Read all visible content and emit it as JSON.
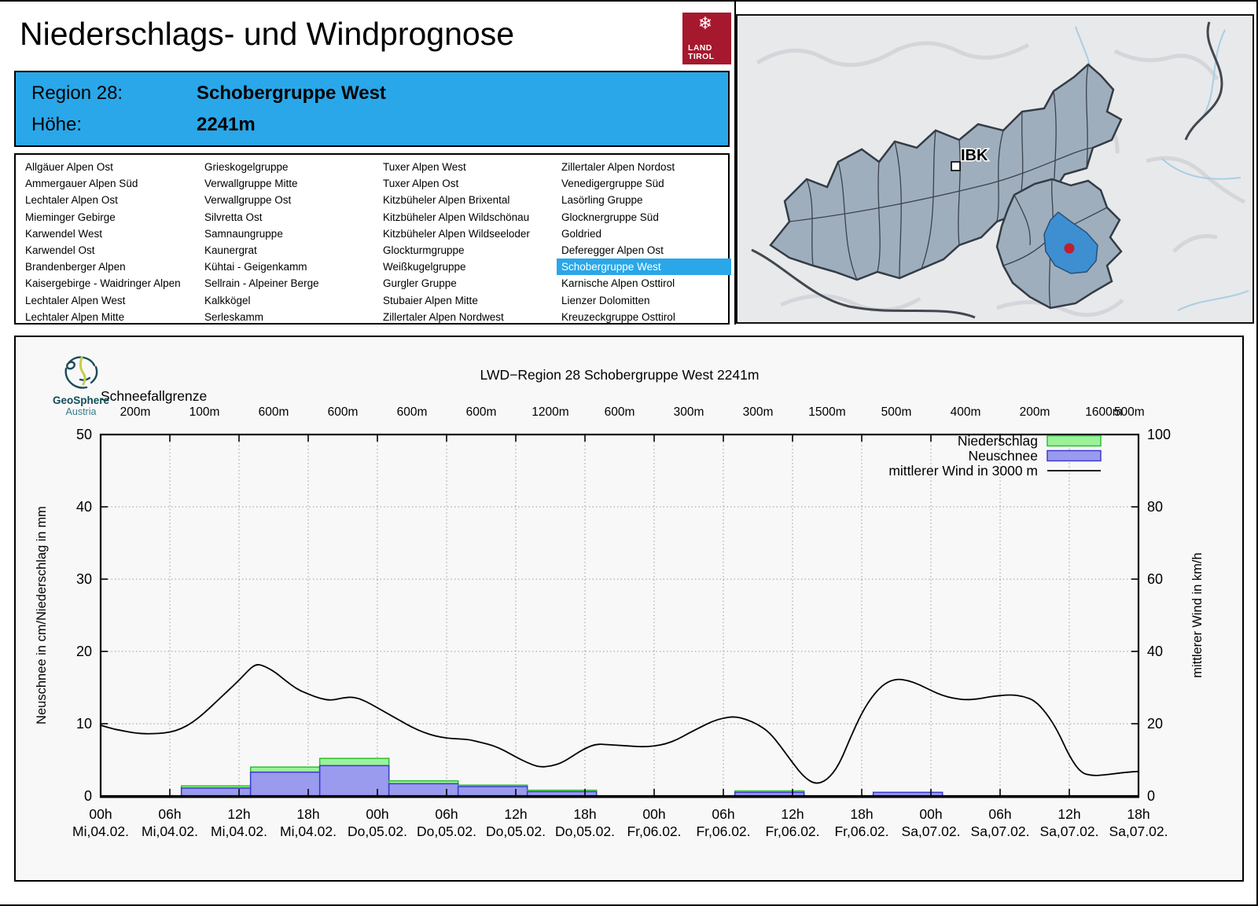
{
  "header": {
    "title": "Niederschlags- und Windprognose",
    "logo": {
      "snowflake": "❄",
      "line1": "LAND",
      "line2": "TIROL",
      "bg": "#A6182D"
    }
  },
  "region_box": {
    "bg": "#2AA7E8",
    "rows": [
      {
        "label": "Region 28:",
        "value": "Schobergruppe West"
      },
      {
        "label": "Höhe:",
        "value": "2241m"
      }
    ]
  },
  "region_list": {
    "selected": "Schobergruppe West",
    "highlight_bg": "#2AA7E8",
    "highlight_fg": "#FFFFFF",
    "columns": [
      [
        "Allgäuer Alpen Ost",
        "Ammergauer Alpen Süd",
        "Lechtaler Alpen Ost",
        "Mieminger Gebirge",
        "Karwendel West",
        "Karwendel Ost",
        "Brandenberger Alpen",
        "Kaisergebirge - Waidringer Alpen",
        "Lechtaler Alpen West",
        "Lechtaler Alpen Mitte"
      ],
      [
        "Grieskogelgruppe",
        "Verwallgruppe Mitte",
        "Verwallgruppe Ost",
        "Silvretta Ost",
        "Samnaungruppe",
        "Kaunergrat",
        "Kühtai - Geigenkamm",
        "Sellrain - Alpeiner Berge",
        "Kalkkögel",
        "Serleskamm"
      ],
      [
        "Tuxer Alpen West",
        "Tuxer Alpen Ost",
        "Kitzbüheler Alpen Brixental",
        "Kitzbüheler Alpen Wildschönau",
        "Kitzbüheler Alpen Wildseeloder",
        "Glockturmgruppe",
        "Weißkugelgruppe",
        "Gurgler Gruppe",
        "Stubaier Alpen Mitte",
        "Zillertaler Alpen Nordwest"
      ],
      [
        "Zillertaler Alpen Nordost",
        "Venedigergruppe Süd",
        "Lasörling Gruppe",
        "Glocknergruppe Süd",
        "Goldried",
        "Deferegger Alpen Ost",
        "Schobergruppe West",
        "Karnische Alpen Osttirol",
        "Lienzer Dolomitten",
        "Kreuzeckgruppe Osttirol"
      ]
    ]
  },
  "map": {
    "city_label": "IBK",
    "region_fill": "#9FAEBD",
    "region_stroke": "#333C46",
    "highlight_fill": "#3E8ED2",
    "marker_color": "#C01F2E"
  },
  "branding": {
    "geosphere_line1": "GeoSphere",
    "geosphere_line2": "Austria"
  },
  "chart_data": {
    "type": "bar+line",
    "title": "LWD−Region 28 Schobergruppe West 2241m",
    "snowline_label": "Schneefallgrenze",
    "snowline_values": [
      "200m",
      "100m",
      "600m",
      "600m",
      "600m",
      "600m",
      "1200m",
      "600m",
      "300m",
      "300m",
      "1500m",
      "500m",
      "400m",
      "200m",
      "1600m",
      "500m"
    ],
    "ylabel_left": "Neuschnee in cm/Niederschlag in mm",
    "ylabel_right": "mittlerer Wind in km/h",
    "ylim_left": [
      0,
      50
    ],
    "ylim_right": [
      0,
      100
    ],
    "yticks_left": [
      0,
      10,
      20,
      30,
      40,
      50
    ],
    "yticks_right": [
      0,
      20,
      40,
      60,
      80,
      100
    ],
    "x_hours_range": [
      0,
      90
    ],
    "grid": "dotted",
    "legend_position": "top-right",
    "legend": [
      {
        "label": "Niederschlag",
        "type": "box",
        "fill": "#9BF29B",
        "stroke": "#2FBF2F"
      },
      {
        "label": "Neuschnee",
        "type": "box",
        "fill": "#9A9AEE",
        "stroke": "#3A3ACE"
      },
      {
        "label": "mittlerer Wind in 3000 m",
        "type": "line",
        "stroke": "#000000"
      }
    ],
    "x_ticks": [
      {
        "hour": 0,
        "time": "00h",
        "date": "Mi,04.02."
      },
      {
        "hour": 6,
        "time": "06h",
        "date": "Mi,04.02."
      },
      {
        "hour": 12,
        "time": "12h",
        "date": "Mi,04.02."
      },
      {
        "hour": 18,
        "time": "18h",
        "date": "Mi,04.02."
      },
      {
        "hour": 24,
        "time": "00h",
        "date": "Do,05.02."
      },
      {
        "hour": 30,
        "time": "06h",
        "date": "Do,05.02."
      },
      {
        "hour": 36,
        "time": "12h",
        "date": "Do,05.02."
      },
      {
        "hour": 42,
        "time": "18h",
        "date": "Do,05.02."
      },
      {
        "hour": 48,
        "time": "00h",
        "date": "Fr,06.02."
      },
      {
        "hour": 54,
        "time": "06h",
        "date": "Fr,06.02."
      },
      {
        "hour": 60,
        "time": "12h",
        "date": "Fr,06.02."
      },
      {
        "hour": 66,
        "time": "18h",
        "date": "Fr,06.02."
      },
      {
        "hour": 72,
        "time": "00h",
        "date": "Sa,07.02."
      },
      {
        "hour": 78,
        "time": "06h",
        "date": "Sa,07.02."
      },
      {
        "hour": 84,
        "time": "12h",
        "date": "Sa,07.02."
      },
      {
        "hour": 90,
        "time": "18h",
        "date": "Sa,07.02."
      }
    ],
    "bars": [
      {
        "start_hour": 6,
        "precip_mm": 1.4,
        "snow_cm": 1.1
      },
      {
        "start_hour": 12,
        "precip_mm": 4.0,
        "snow_cm": 3.3
      },
      {
        "start_hour": 18,
        "precip_mm": 5.2,
        "snow_cm": 4.2
      },
      {
        "start_hour": 24,
        "precip_mm": 2.1,
        "snow_cm": 1.7
      },
      {
        "start_hour": 30,
        "precip_mm": 1.5,
        "snow_cm": 1.3
      },
      {
        "start_hour": 36,
        "precip_mm": 0.8,
        "snow_cm": 0.6
      },
      {
        "start_hour": 54,
        "precip_mm": 0.7,
        "snow_cm": 0.5
      },
      {
        "start_hour": 66,
        "precip_mm": 0.5,
        "snow_cm": 0.5
      }
    ],
    "wind_line_kmh": [
      [
        0,
        19.6
      ],
      [
        1,
        18.6
      ],
      [
        2,
        18.0
      ],
      [
        3,
        17.4
      ],
      [
        4,
        17.2
      ],
      [
        5,
        17.3
      ],
      [
        6,
        17.6
      ],
      [
        7,
        18.6
      ],
      [
        8,
        20.4
      ],
      [
        9,
        23.0
      ],
      [
        10,
        26.0
      ],
      [
        11,
        29.0
      ],
      [
        12,
        32.0
      ],
      [
        13,
        35.4
      ],
      [
        13.5,
        36.4
      ],
      [
        14,
        36.2
      ],
      [
        15,
        34.6
      ],
      [
        16,
        32.0
      ],
      [
        17,
        29.6
      ],
      [
        18,
        28.2
      ],
      [
        19,
        27.0
      ],
      [
        20,
        26.4
      ],
      [
        21,
        27.2
      ],
      [
        22,
        27.4
      ],
      [
        23,
        26.2
      ],
      [
        24,
        24.4
      ],
      [
        25,
        22.6
      ],
      [
        26,
        20.8
      ],
      [
        27,
        19.0
      ],
      [
        28,
        17.6
      ],
      [
        29,
        16.6
      ],
      [
        30,
        16.0
      ],
      [
        31,
        15.8
      ],
      [
        32,
        15.6
      ],
      [
        33,
        14.8
      ],
      [
        34,
        14.0
      ],
      [
        35,
        12.6
      ],
      [
        36,
        10.8
      ],
      [
        37,
        9.2
      ],
      [
        38,
        8.0
      ],
      [
        39,
        8.2
      ],
      [
        40,
        9.2
      ],
      [
        41,
        11.2
      ],
      [
        42,
        13.2
      ],
      [
        43,
        14.4
      ],
      [
        44,
        14.2
      ],
      [
        45,
        14.0
      ],
      [
        46,
        13.8
      ],
      [
        47,
        13.6
      ],
      [
        48,
        13.8
      ],
      [
        49,
        14.4
      ],
      [
        50,
        15.6
      ],
      [
        51,
        17.4
      ],
      [
        52,
        19.0
      ],
      [
        53,
        20.6
      ],
      [
        54,
        21.6
      ],
      [
        55,
        22.0
      ],
      [
        56,
        21.2
      ],
      [
        57,
        19.8
      ],
      [
        58,
        17.6
      ],
      [
        59,
        13.6
      ],
      [
        60,
        9.2
      ],
      [
        61,
        5.2
      ],
      [
        62,
        3.2
      ],
      [
        63,
        4.4
      ],
      [
        64,
        8.4
      ],
      [
        65,
        16.0
      ],
      [
        66,
        23.0
      ],
      [
        67,
        28.0
      ],
      [
        68,
        31.2
      ],
      [
        69,
        32.4
      ],
      [
        70,
        32.0
      ],
      [
        71,
        30.8
      ],
      [
        72,
        29.2
      ],
      [
        73,
        27.8
      ],
      [
        74,
        27.0
      ],
      [
        75,
        26.6
      ],
      [
        76,
        26.8
      ],
      [
        77,
        27.4
      ],
      [
        78,
        27.8
      ],
      [
        79,
        28.0
      ],
      [
        80,
        27.6
      ],
      [
        81,
        26.4
      ],
      [
        82,
        23.0
      ],
      [
        83,
        18.0
      ],
      [
        84,
        11.0
      ],
      [
        85,
        6.4
      ],
      [
        86,
        5.6
      ],
      [
        87,
        5.8
      ],
      [
        88,
        6.2
      ],
      [
        89,
        6.6
      ],
      [
        90,
        6.8
      ]
    ],
    "bar_colors": {
      "precip_fill": "#9BF29B",
      "precip_stroke": "#2FBF2F",
      "snow_fill": "#9A9AEE",
      "snow_stroke": "#3A3ACE"
    },
    "wind_color": "#000000"
  }
}
